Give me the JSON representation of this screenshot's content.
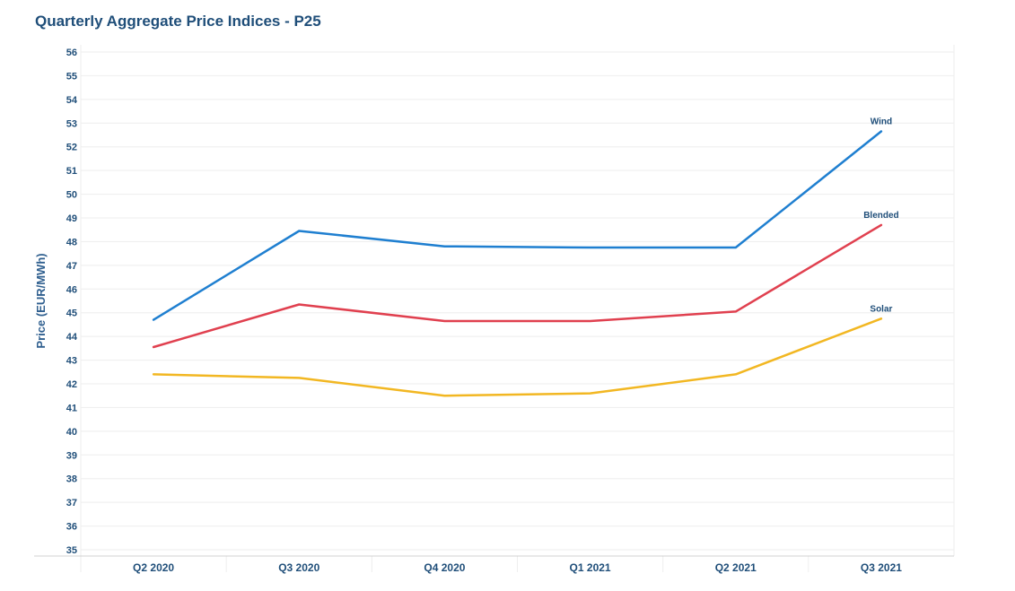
{
  "chart_data": {
    "type": "line",
    "title": "Quarterly Aggregate Price Indices - P25",
    "ylabel": "Price (EUR/MWh)",
    "xlabel": "",
    "ylim": [
      35,
      56
    ],
    "yticks": [
      35,
      36,
      37,
      38,
      39,
      40,
      41,
      42,
      43,
      44,
      45,
      46,
      47,
      48,
      49,
      50,
      51,
      52,
      53,
      54,
      55,
      56
    ],
    "categories": [
      "Q2 2020",
      "Q3 2020",
      "Q4 2020",
      "Q1 2021",
      "Q2 2021",
      "Q3 2021"
    ],
    "grid": "horizontal",
    "series": [
      {
        "name": "Wind",
        "color": "#1f7fd0",
        "values": [
          44.7,
          48.45,
          47.8,
          47.75,
          47.75,
          52.65
        ]
      },
      {
        "name": "Blended",
        "color": "#e0404f",
        "values": [
          43.55,
          45.35,
          44.65,
          44.65,
          45.05,
          48.7
        ]
      },
      {
        "name": "Solar",
        "color": "#f2b722",
        "values": [
          42.4,
          42.25,
          41.5,
          41.6,
          42.4,
          44.75
        ]
      }
    ]
  }
}
